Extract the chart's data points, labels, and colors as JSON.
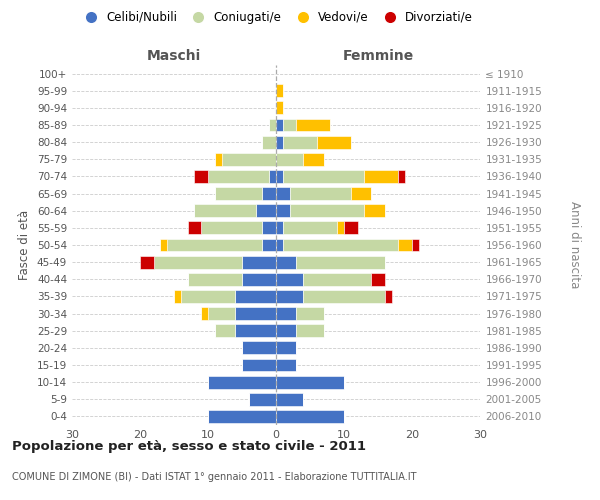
{
  "age_groups": [
    "0-4",
    "5-9",
    "10-14",
    "15-19",
    "20-24",
    "25-29",
    "30-34",
    "35-39",
    "40-44",
    "45-49",
    "50-54",
    "55-59",
    "60-64",
    "65-69",
    "70-74",
    "75-79",
    "80-84",
    "85-89",
    "90-94",
    "95-99",
    "100+"
  ],
  "birth_years": [
    "2006-2010",
    "2001-2005",
    "1996-2000",
    "1991-1995",
    "1986-1990",
    "1981-1985",
    "1976-1980",
    "1971-1975",
    "1966-1970",
    "1961-1965",
    "1956-1960",
    "1951-1955",
    "1946-1950",
    "1941-1945",
    "1936-1940",
    "1931-1935",
    "1926-1930",
    "1921-1925",
    "1916-1920",
    "1911-1915",
    "≤ 1910"
  ],
  "maschi": {
    "celibi": [
      10,
      4,
      10,
      5,
      5,
      6,
      6,
      6,
      5,
      5,
      2,
      2,
      3,
      2,
      1,
      0,
      0,
      0,
      0,
      0,
      0
    ],
    "coniugati": [
      0,
      0,
      0,
      0,
      0,
      3,
      4,
      8,
      8,
      13,
      14,
      9,
      9,
      7,
      9,
      8,
      2,
      1,
      0,
      0,
      0
    ],
    "vedovi": [
      0,
      0,
      0,
      0,
      0,
      0,
      1,
      1,
      0,
      0,
      1,
      0,
      0,
      0,
      0,
      1,
      0,
      0,
      0,
      0,
      0
    ],
    "divorziati": [
      0,
      0,
      0,
      0,
      0,
      0,
      0,
      0,
      0,
      2,
      0,
      2,
      0,
      0,
      2,
      0,
      0,
      0,
      0,
      0,
      0
    ]
  },
  "femmine": {
    "nubili": [
      10,
      4,
      10,
      3,
      3,
      3,
      3,
      4,
      4,
      3,
      1,
      1,
      2,
      2,
      1,
      0,
      1,
      1,
      0,
      0,
      0
    ],
    "coniugate": [
      0,
      0,
      0,
      0,
      0,
      4,
      4,
      12,
      10,
      13,
      17,
      8,
      11,
      9,
      12,
      4,
      5,
      2,
      0,
      0,
      0
    ],
    "vedove": [
      0,
      0,
      0,
      0,
      0,
      0,
      0,
      0,
      0,
      0,
      2,
      1,
      3,
      3,
      5,
      3,
      5,
      5,
      1,
      1,
      0
    ],
    "divorziate": [
      0,
      0,
      0,
      0,
      0,
      0,
      0,
      1,
      2,
      0,
      1,
      2,
      0,
      0,
      1,
      0,
      0,
      0,
      0,
      0,
      0
    ]
  },
  "colors": {
    "celibi_nubili": "#4472c4",
    "coniugati_e": "#c5d8a4",
    "vedovi_e": "#ffc000",
    "divorziati_e": "#cc0000"
  },
  "xlim": 30,
  "title": "Popolazione per età, sesso e stato civile - 2011",
  "subtitle": "COMUNE DI ZIMONE (BI) - Dati ISTAT 1° gennaio 2011 - Elaborazione TUTTITALIA.IT",
  "ylabel_left": "Fasce di età",
  "ylabel_right": "Anni di nascita",
  "xlabel_maschi": "Maschi",
  "xlabel_femmine": "Femmine",
  "legend_labels": [
    "Celibi/Nubili",
    "Coniugati/e",
    "Vedovi/e",
    "Divorziati/e"
  ]
}
